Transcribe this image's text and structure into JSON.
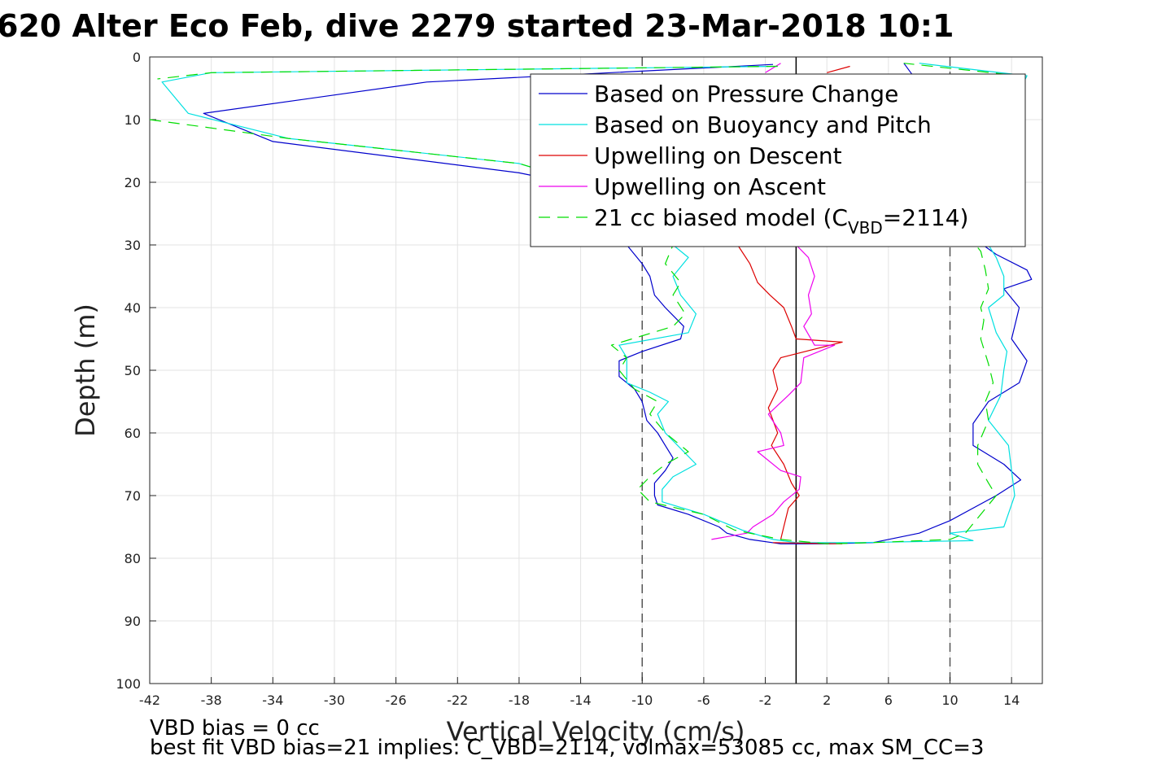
{
  "title": "620 Alter Eco Feb, dive 2279 started 23-Mar-2018 10:1",
  "chart_data": {
    "type": "line",
    "xlabel": "Vertical Velocity (cm/s)",
    "ylabel": "Depth (m)",
    "xlim": [
      -42,
      16
    ],
    "ylim": [
      0,
      100
    ],
    "y_reversed": true,
    "grid": true,
    "legend_position": "top-right",
    "x_ticks": [
      -42,
      -38,
      -34,
      -30,
      -26,
      -22,
      -18,
      -14,
      -10,
      -6,
      -2,
      2,
      6,
      10,
      14
    ],
    "y_ticks": [
      0,
      10,
      20,
      30,
      40,
      50,
      60,
      70,
      80,
      90,
      100
    ],
    "reference_lines": [
      {
        "x": -10,
        "style": "dashed",
        "color": "#555555"
      },
      {
        "x": 0,
        "style": "solid",
        "color": "#000000"
      },
      {
        "x": 10,
        "style": "dashed",
        "color": "#555555"
      }
    ],
    "series": [
      {
        "name": "Based on Pressure Change",
        "color": "#0000cc",
        "dash": "",
        "segments": [
          [
            [
              -1.5,
              1.2
            ],
            [
              -24,
              4
            ],
            [
              -38.5,
              9
            ],
            [
              -34,
              13.5
            ],
            [
              -18,
              18.5
            ],
            [
              -14,
              20.5
            ],
            [
              -11,
              23
            ],
            [
              -10.5,
              27
            ],
            [
              -11,
              30
            ],
            [
              -10,
              33
            ],
            [
              -9.5,
              35
            ],
            [
              -9.2,
              38
            ],
            [
              -8.5,
              40
            ],
            [
              -7.3,
              43
            ],
            [
              -7.5,
              45
            ],
            [
              -10,
              47
            ],
            [
              -11.5,
              48.5
            ],
            [
              -11.5,
              51
            ],
            [
              -10.5,
              53
            ],
            [
              -10,
              55
            ],
            [
              -9.7,
              58
            ],
            [
              -9,
              60
            ],
            [
              -8.5,
              62
            ],
            [
              -8,
              64
            ],
            [
              -8.5,
              66
            ],
            [
              -9.2,
              68
            ],
            [
              -9.2,
              70
            ],
            [
              -9,
              71.5
            ],
            [
              -7,
              73
            ],
            [
              -5,
              75
            ],
            [
              -4.5,
              76
            ],
            [
              -3,
              77
            ],
            [
              -1,
              77.7
            ],
            [
              2,
              77.7
            ],
            [
              5,
              77.5
            ],
            [
              8,
              76
            ],
            [
              10,
              74
            ],
            [
              13,
              70
            ],
            [
              14.6,
              67.5
            ],
            [
              13.5,
              65
            ],
            [
              11.5,
              62
            ],
            [
              11.5,
              58.5
            ],
            [
              12.5,
              55
            ],
            [
              14.5,
              52
            ],
            [
              15,
              48.5
            ],
            [
              14,
              45
            ],
            [
              14.5,
              40
            ],
            [
              13.5,
              37
            ],
            [
              15.3,
              35.5
            ],
            [
              15,
              34
            ],
            [
              13,
              31.5
            ],
            [
              11,
              28
            ],
            [
              9,
              25
            ],
            [
              8,
              22
            ],
            [
              9.5,
              12
            ],
            [
              8.5,
              6
            ],
            [
              7,
              1
            ]
          ]
        ]
      },
      {
        "name": "Based on Buoyancy and Pitch",
        "color": "#00e0e0",
        "dash": "",
        "segments": [
          [
            [
              -1.2,
              1.5
            ],
            [
              -38,
              2.5
            ],
            [
              -41.2,
              4
            ],
            [
              -39.5,
              9
            ],
            [
              -33,
              13
            ],
            [
              -18,
              17
            ],
            [
              -14,
              20
            ],
            [
              -11,
              23
            ],
            [
              -9,
              27
            ],
            [
              -8,
              30
            ],
            [
              -7,
              32
            ],
            [
              -8,
              35
            ],
            [
              -7.5,
              38
            ],
            [
              -6.5,
              41
            ],
            [
              -7,
              44
            ],
            [
              -11.5,
              46
            ],
            [
              -11,
              48
            ],
            [
              -11,
              52
            ],
            [
              -9.5,
              53.5
            ],
            [
              -8.3,
              55
            ],
            [
              -9,
              57
            ],
            [
              -8.5,
              60
            ],
            [
              -7.3,
              63
            ],
            [
              -6.5,
              65
            ],
            [
              -8,
              67
            ],
            [
              -8.7,
              69
            ],
            [
              -8.7,
              71
            ],
            [
              -6,
              73
            ],
            [
              -3.5,
              75.5
            ],
            [
              -1.5,
              77
            ],
            [
              0,
              77.5
            ],
            [
              4,
              77.5
            ],
            [
              11.5,
              77.2
            ],
            [
              10,
              76
            ],
            [
              13.5,
              75
            ],
            [
              14.2,
              70
            ],
            [
              14,
              66
            ],
            [
              13.8,
              62
            ],
            [
              12.5,
              58
            ],
            [
              13.3,
              54
            ],
            [
              13.5,
              50
            ],
            [
              13.7,
              47
            ],
            [
              13,
              44
            ],
            [
              12.5,
              40
            ],
            [
              13.5,
              38
            ],
            [
              13.5,
              35
            ],
            [
              13,
              32
            ],
            [
              12,
              28
            ],
            [
              10,
              25
            ],
            [
              9,
              22
            ],
            [
              11,
              15
            ],
            [
              14,
              8
            ],
            [
              15,
              3
            ],
            [
              8,
              1
            ]
          ]
        ]
      },
      {
        "name": "Upwelling on Descent",
        "color": "#dd0000",
        "dash": "",
        "segments": [
          [
            [
              -3.8,
              30
            ],
            [
              -3,
              33
            ],
            [
              -2.5,
              36
            ],
            [
              -1.7,
              38
            ],
            [
              -0.8,
              40
            ],
            [
              -0.3,
              43
            ],
            [
              0,
              45
            ],
            [
              3,
              45.5
            ],
            [
              -1,
              48
            ],
            [
              -1.5,
              50
            ],
            [
              -1.2,
              53
            ],
            [
              -1.8,
              56
            ],
            [
              -1.2,
              60
            ],
            [
              -1.6,
              62
            ],
            [
              -0.8,
              65
            ],
            [
              -0.3,
              68
            ],
            [
              0.2,
              70
            ],
            [
              -0.5,
              72
            ],
            [
              -0.8,
              75
            ],
            [
              -1,
              77
            ]
          ],
          [
            [
              -1.5,
              77.5
            ],
            [
              3,
              77.7
            ]
          ],
          [
            [
              2,
              2.5
            ],
            [
              3.5,
              1.5
            ]
          ]
        ]
      },
      {
        "name": "Upwelling on Ascent",
        "color": "#ee00ee",
        "dash": "",
        "segments": [
          [
            [
              0,
              30
            ],
            [
              0.8,
              32
            ],
            [
              1.2,
              35
            ],
            [
              0.8,
              38
            ],
            [
              1,
              41
            ],
            [
              0.5,
              43
            ],
            [
              1.2,
              46
            ],
            [
              2.5,
              46
            ],
            [
              0.5,
              48
            ],
            [
              0.3,
              52
            ],
            [
              -0.5,
              54
            ],
            [
              -1.8,
              57
            ],
            [
              -1,
              60
            ],
            [
              -0.8,
              62
            ],
            [
              -2.5,
              63
            ],
            [
              -1,
              66
            ],
            [
              0.3,
              67
            ],
            [
              0.2,
              69
            ],
            [
              -0.8,
              71
            ],
            [
              -1.5,
              73
            ],
            [
              -2.8,
              75
            ],
            [
              -3.2,
              76
            ],
            [
              -5.5,
              77
            ]
          ],
          [
            [
              -2,
              2.5
            ],
            [
              -1,
              1
            ]
          ]
        ]
      },
      {
        "name": "21 cc biased model (C_VBD=2114)",
        "color": "#00dd00",
        "dash": "14,9",
        "segments": [
          [
            [
              -1.2,
              1.5
            ],
            [
              -38,
              2.5
            ],
            [
              -41.5,
              3.5
            ]
          ],
          [
            [
              -42,
              10
            ],
            [
              -33,
              13
            ],
            [
              -18,
              17
            ],
            [
              -14,
              20
            ],
            [
              -11,
              23
            ],
            [
              -9,
              27
            ],
            [
              -8,
              30
            ],
            [
              -8.5,
              33
            ],
            [
              -7.5,
              36
            ],
            [
              -8,
              38
            ],
            [
              -7.2,
              41
            ],
            [
              -8,
              43
            ],
            [
              -12,
              46
            ],
            [
              -11,
              48
            ],
            [
              -11.5,
              50
            ],
            [
              -10.5,
              53
            ],
            [
              -9,
              55
            ],
            [
              -9.5,
              57
            ],
            [
              -8.5,
              60
            ],
            [
              -7,
              63
            ],
            [
              -8.5,
              65
            ],
            [
              -9.5,
              67
            ],
            [
              -10.3,
              69
            ],
            [
              -9.5,
              71
            ],
            [
              -6,
              73
            ],
            [
              -4,
              75.5
            ],
            [
              -1,
              77
            ],
            [
              2,
              77.7
            ],
            [
              5,
              77.5
            ],
            [
              10,
              77
            ],
            [
              11,
              76
            ],
            [
              12,
              73
            ],
            [
              13,
              70
            ],
            [
              12.5,
              68
            ],
            [
              11.8,
              65
            ],
            [
              11.8,
              62
            ],
            [
              12.5,
              58
            ],
            [
              12.3,
              55
            ],
            [
              12.8,
              52
            ],
            [
              12.5,
              49
            ],
            [
              12,
              45
            ],
            [
              12.2,
              42
            ],
            [
              12,
              40
            ],
            [
              12.5,
              37
            ],
            [
              12.3,
              34
            ],
            [
              12,
              31
            ],
            [
              11,
              28
            ],
            [
              9,
              25
            ],
            [
              8,
              22
            ],
            [
              10,
              14
            ],
            [
              14,
              6
            ],
            [
              14.5,
              3
            ],
            [
              7,
              1
            ]
          ]
        ]
      }
    ],
    "legend_entries": [
      {
        "text": "Based on Pressure Change",
        "color": "#0000cc",
        "dash": ""
      },
      {
        "text": "Based on Buoyancy and Pitch",
        "color": "#00e0e0",
        "dash": ""
      },
      {
        "text": "Upwelling on Descent",
        "color": "#dd0000",
        "dash": ""
      },
      {
        "text": "Upwelling on Ascent",
        "color": "#ee00ee",
        "dash": ""
      },
      {
        "text": "21 cc biased model (C",
        "sub": "VBD",
        "after": "=2114)",
        "color": "#00dd00",
        "dash": "14,9"
      }
    ]
  },
  "notes": {
    "line1": "VBD bias = 0 cc",
    "line2": "best fit VBD bias=21 implies: C_VBD=2114, volmax=53085 cc, max SM_CC=3"
  }
}
